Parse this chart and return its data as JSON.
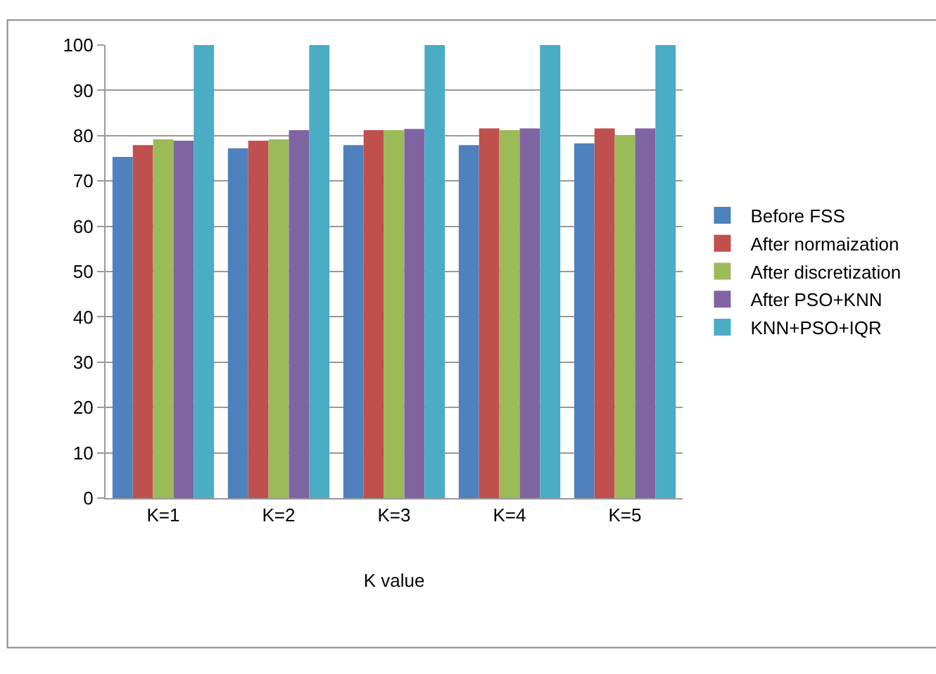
{
  "chart_data": {
    "type": "bar",
    "xlabel": "K value",
    "categories": [
      "K=1",
      "K=2",
      "K=3",
      "K=4",
      "K=5"
    ],
    "series": [
      {
        "name": "Before FSS",
        "color": "#4f81bd",
        "values": [
          75.3,
          77.2,
          77.9,
          77.9,
          78.3
        ]
      },
      {
        "name": "After normaization",
        "color": "#c0504d",
        "values": [
          77.9,
          78.9,
          81.2,
          81.6,
          81.6
        ]
      },
      {
        "name": "After discretization",
        "color": "#9bbb59",
        "values": [
          79.2,
          79.2,
          81.2,
          81.2,
          80.1
        ]
      },
      {
        "name": "After PSO+KNN",
        "color": "#8064a2",
        "values": [
          78.9,
          81.2,
          81.5,
          81.6,
          81.6
        ]
      },
      {
        "name": "KNN+PSO+IQR",
        "color": "#4bacc6",
        "values": [
          100,
          100,
          100,
          100,
          100
        ]
      }
    ],
    "ylim": [
      0,
      100
    ],
    "yticks": [
      0,
      10,
      20,
      30,
      40,
      50,
      60,
      70,
      80,
      90,
      100
    ],
    "grid": "y",
    "legend": "right"
  }
}
